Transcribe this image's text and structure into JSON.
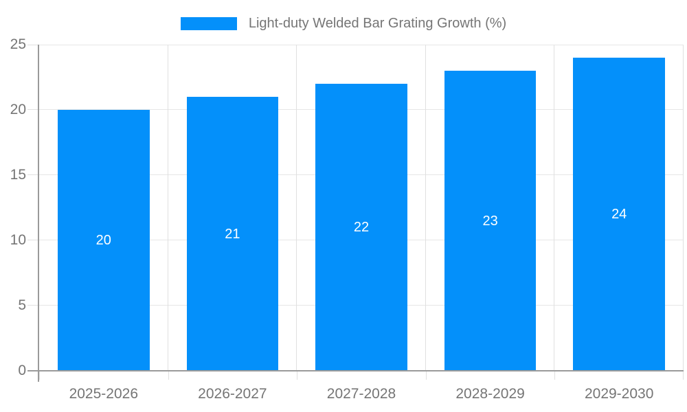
{
  "legend": {
    "label": "Light-duty Welded Bar Grating Growth (%)"
  },
  "chart_data": {
    "type": "bar",
    "title": "",
    "xlabel": "",
    "ylabel": "",
    "categories": [
      "2025-2026",
      "2026-2027",
      "2027-2028",
      "2028-2029",
      "2029-2030"
    ],
    "values": [
      20,
      21,
      22,
      23,
      24
    ],
    "bar_labels": [
      "20",
      "21",
      "22",
      "23",
      "24"
    ],
    "series": [
      {
        "name": "Light-duty Welded Bar Grating Growth (%)",
        "values": [
          20,
          21,
          22,
          23,
          24
        ]
      }
    ],
    "ylim": [
      0,
      25
    ],
    "yticks": [
      0,
      5,
      10,
      15,
      20,
      25
    ],
    "legend_position": "top",
    "grid": true,
    "colors": {
      "bar": "#0490fa",
      "grid": "#e6e6e6",
      "boundary": "#e0e0e0",
      "tick": "#e0e0e0",
      "axis": "#9a9a9a",
      "label_text": "#757575",
      "bar_label_text": "#ffffff",
      "background": "#ffffff"
    }
  }
}
